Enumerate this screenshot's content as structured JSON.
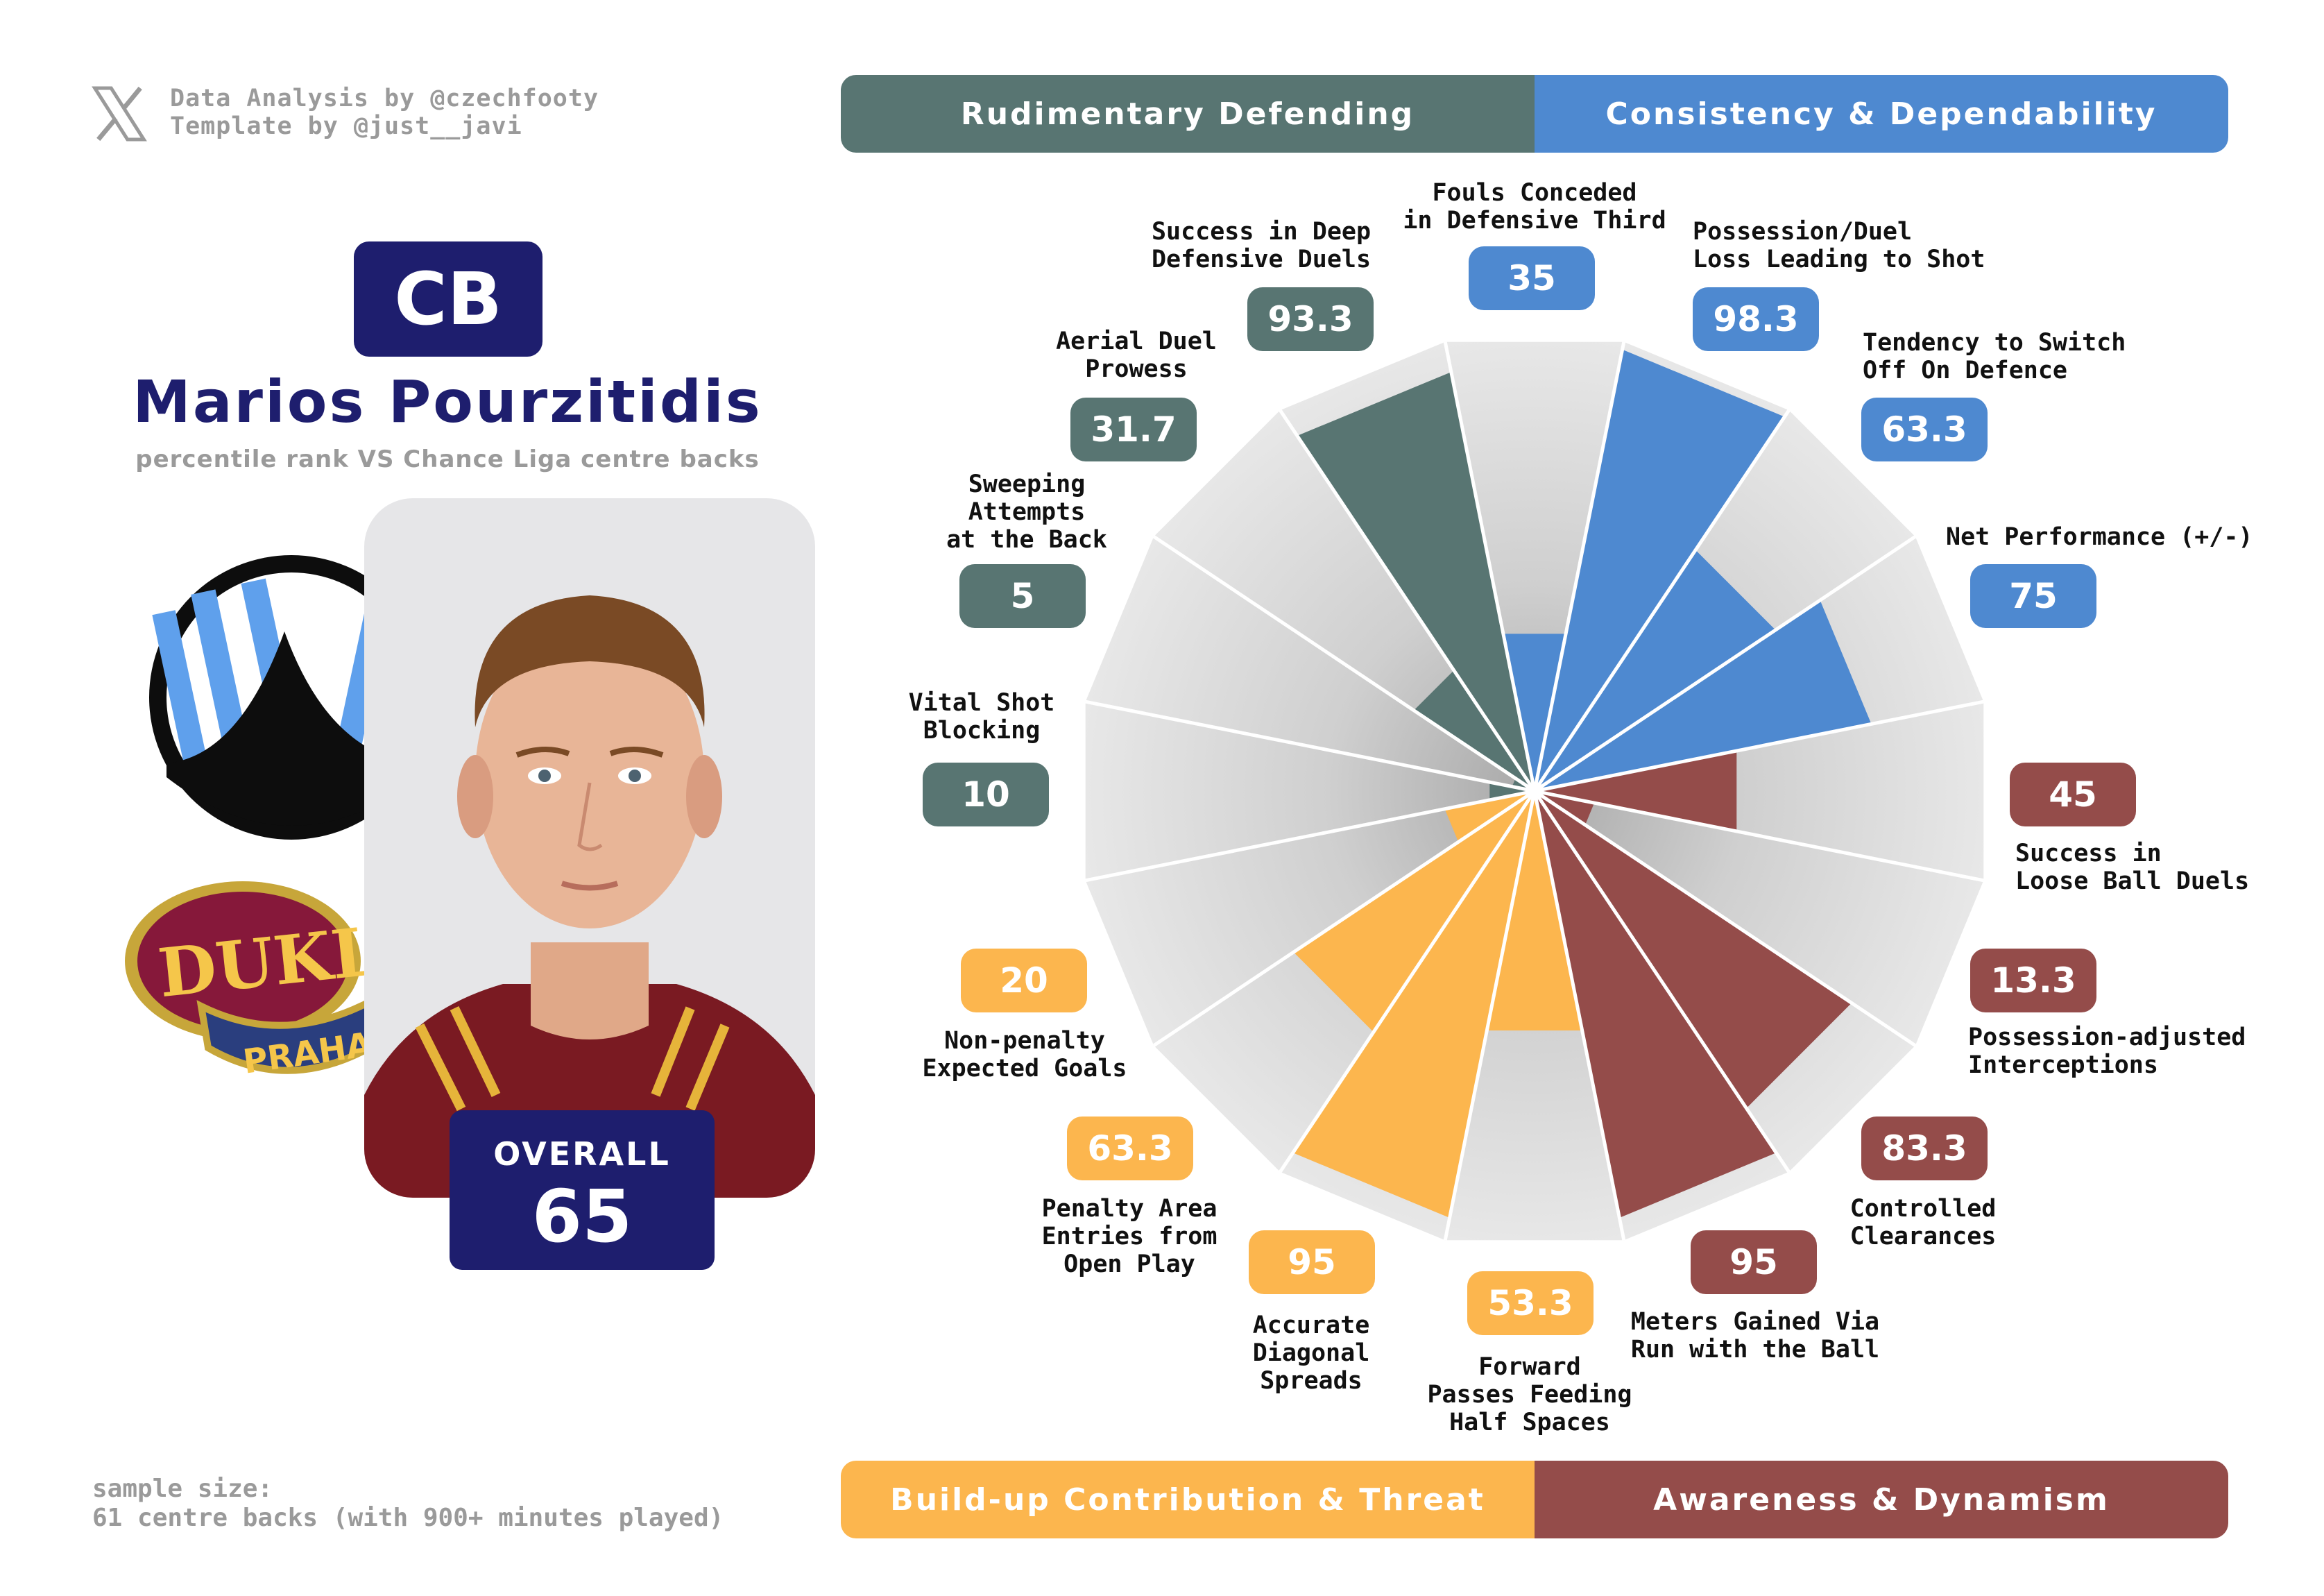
{
  "credits": {
    "line1": "Data Analysis by @czechfooty",
    "line2": "Template by @just__javi"
  },
  "player": {
    "position": "CB",
    "name": "Marios Pourzitidis",
    "subtitle": "percentile rank VS Chance Liga centre backs",
    "overall_label": "OVERALL",
    "overall_value": "65"
  },
  "club": {
    "logo_text_1": "DUKL",
    "logo_text_2": "PRAHA"
  },
  "sample": {
    "line1": "sample size:",
    "line2": "61 centre backs (with 900+ minutes played)"
  },
  "colors": {
    "rudimentary": "#587572",
    "consistency": "#4e89d0",
    "awareness": "#944c4a",
    "buildup": "#fcb64e",
    "navy": "#1e1e6e",
    "wedge_bg": "#e3e3e3"
  },
  "categories": {
    "rudimentary": "Rudimentary Defending",
    "consistency": "Consistency & Dependability",
    "buildup": "Build-up Contribution & Threat",
    "awareness": "Awareness & Dynamism"
  },
  "chart_data": {
    "type": "radial-bar",
    "title": "Marios Pourzitidis percentile rank VS Chance Liga centre backs",
    "range": [
      0,
      100
    ],
    "metrics": [
      {
        "label": "Fouls Conceded in Defensive Third",
        "value": 35,
        "display": "35",
        "group": "consistency"
      },
      {
        "label": "Possession/Duel Loss Leading to Shot",
        "value": 98.3,
        "display": "98.3",
        "group": "consistency"
      },
      {
        "label": "Tendency to Switch Off On Defence",
        "value": 63.3,
        "display": "63.3",
        "group": "consistency"
      },
      {
        "label": "Net Performance (+/-)",
        "value": 75,
        "display": "75",
        "group": "consistency"
      },
      {
        "label": "Success in Loose Ball Duels",
        "value": 45,
        "display": "45",
        "group": "awareness"
      },
      {
        "label": "Possession-adjusted Interceptions",
        "value": 13.3,
        "display": "13.3",
        "group": "awareness"
      },
      {
        "label": "Controlled Clearances",
        "value": 83.3,
        "display": "83.3",
        "group": "awareness"
      },
      {
        "label": "Meters Gained Via Run with the Ball",
        "value": 95,
        "display": "95",
        "group": "awareness"
      },
      {
        "label": "Forward Passes Feeding Half Spaces",
        "value": 53.3,
        "display": "53.3",
        "group": "buildup"
      },
      {
        "label": "Accurate Diagonal Spreads",
        "value": 95,
        "display": "95",
        "group": "buildup"
      },
      {
        "label": "Penalty Area Entries from Open Play",
        "value": 63.3,
        "display": "63.3",
        "group": "buildup"
      },
      {
        "label": "Non-penalty Expected Goals",
        "value": 20,
        "display": "20",
        "group": "buildup"
      },
      {
        "label": "Vital Shot Blocking",
        "value": 10,
        "display": "10",
        "group": "rudimentary"
      },
      {
        "label": "Sweeping Attempts at the Back",
        "value": 5,
        "display": "5",
        "group": "rudimentary"
      },
      {
        "label": "Aerial Duel Prowess",
        "value": 31.7,
        "display": "31.7",
        "group": "rudimentary"
      },
      {
        "label": "Success in Deep Defensive Duels",
        "value": 93.3,
        "display": "93.3",
        "group": "rudimentary"
      }
    ]
  }
}
